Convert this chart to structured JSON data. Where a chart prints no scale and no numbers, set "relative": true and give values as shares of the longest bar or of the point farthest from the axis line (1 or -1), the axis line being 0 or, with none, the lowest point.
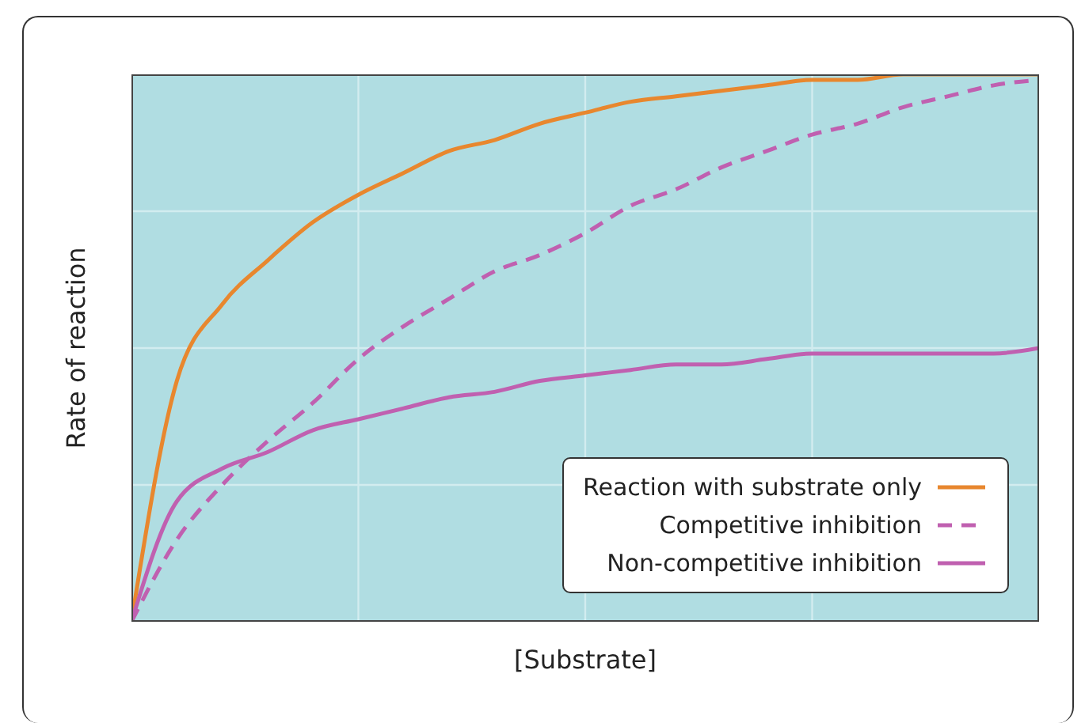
{
  "chart_data": {
    "type": "line",
    "relative": true,
    "xlabel": "[Substrate]",
    "ylabel": "Rate of reaction",
    "grid": true,
    "legend": "bottom right",
    "marker": "none",
    "categories": [
      null,
      null,
      null,
      null,
      null,
      null,
      null,
      null,
      null,
      null,
      null,
      null,
      null,
      null,
      null,
      null,
      null,
      null,
      null,
      null,
      null
    ],
    "series": [
      {
        "name": "Reaction with substrate only",
        "color": "#e8872e",
        "line_style": "solid",
        "values": [
          0,
          0.44,
          0.58,
          0.66,
          0.73,
          0.78,
          0.82,
          0.86,
          0.88,
          0.91,
          0.93,
          0.95,
          0.96,
          0.97,
          0.98,
          0.99,
          0.99,
          1,
          1,
          1,
          1
        ]
      },
      {
        "name": "Competitive inhibition",
        "color": "#c060b0",
        "line_style": "dashed",
        "values": [
          0,
          0.15,
          0.25,
          0.33,
          0.4,
          0.48,
          0.54,
          0.59,
          0.64,
          0.67,
          0.71,
          0.76,
          0.79,
          0.83,
          0.86,
          0.89,
          0.91,
          0.94,
          0.96,
          0.98,
          0.99
        ]
      },
      {
        "name": "Non-competitive inhibition",
        "color": "#c060b0",
        "line_style": "solid",
        "values": [
          0,
          0.22,
          0.28,
          0.31,
          0.35,
          0.37,
          0.39,
          0.41,
          0.42,
          0.44,
          0.45,
          0.46,
          0.47,
          0.47,
          0.48,
          0.49,
          0.49,
          0.49,
          0.49,
          0.49,
          0.5
        ]
      }
    ]
  }
}
